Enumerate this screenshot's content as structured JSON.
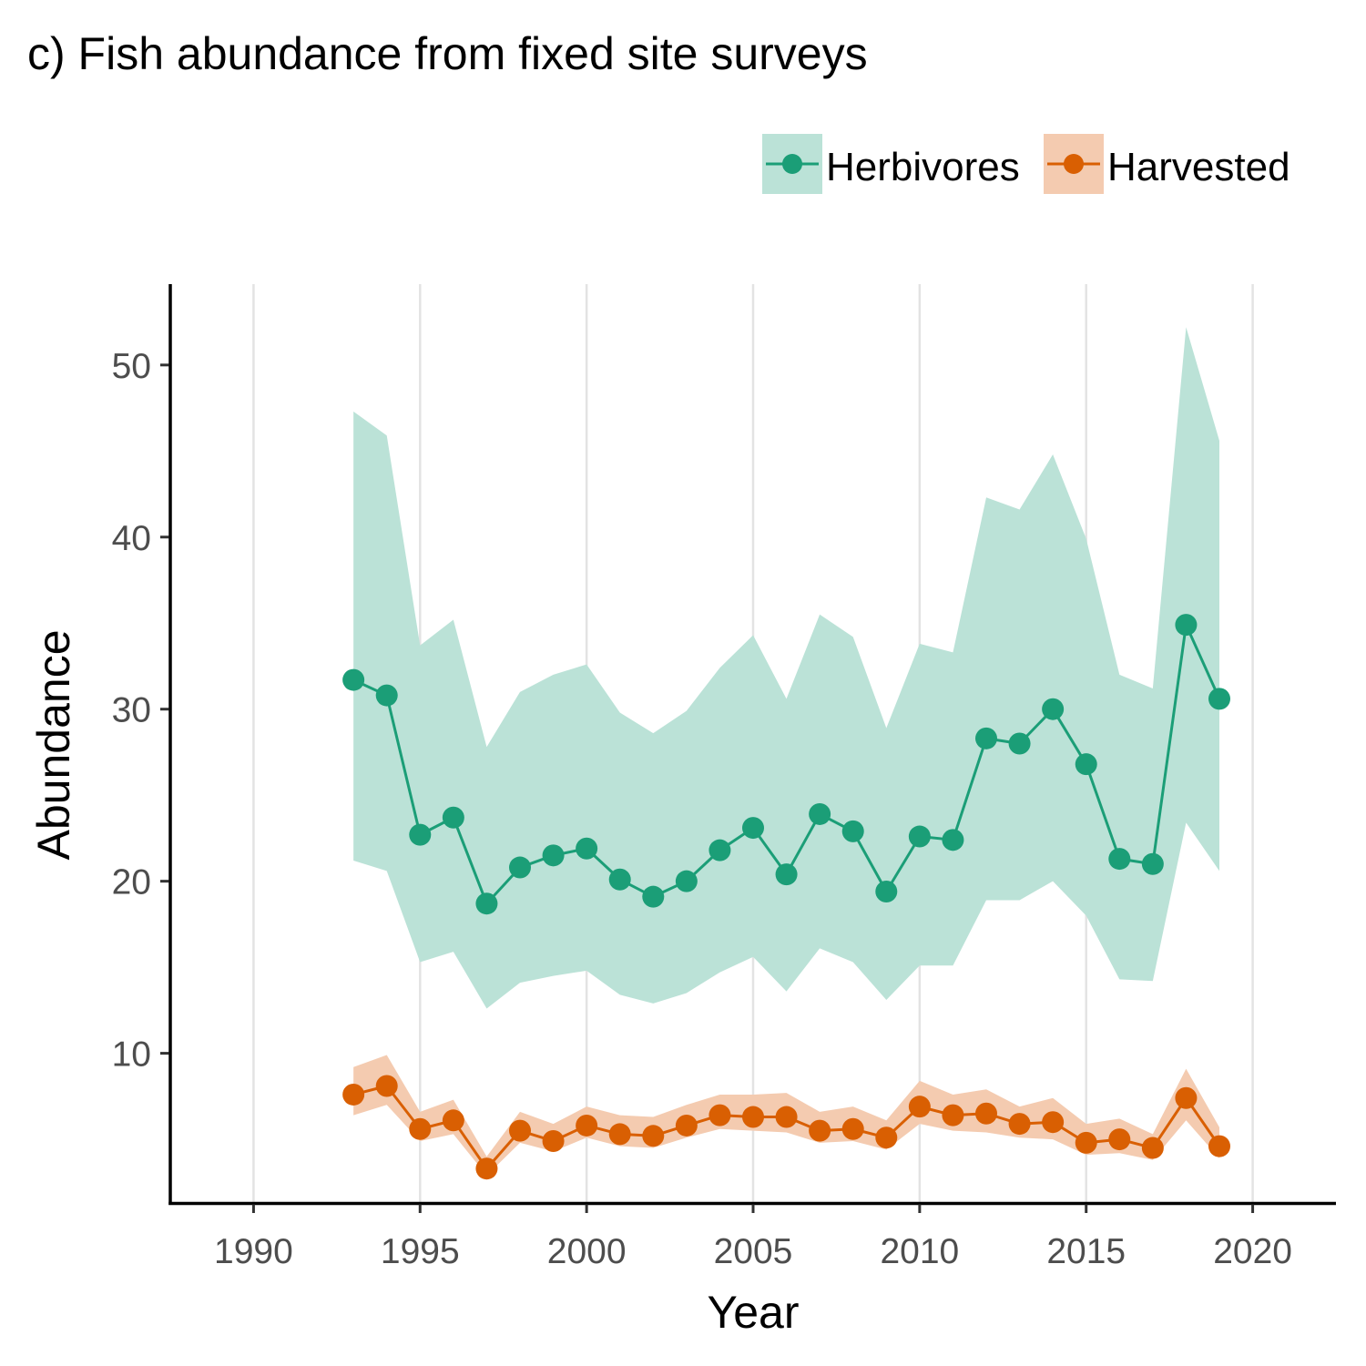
{
  "chart_data": {
    "type": "line",
    "title": "c) Fish abundance from fixed site surveys",
    "xlabel": "Year",
    "ylabel": "Abundance",
    "xlim": [
      1987.5,
      2022.5
    ],
    "ylim": [
      1.3,
      54.7
    ],
    "x_ticks": [
      1990,
      1995,
      2000,
      2005,
      2010,
      2015,
      2020
    ],
    "x_tick_labels": [
      "1990",
      "1995",
      "2000",
      "2005",
      "2010",
      "2015",
      "2020"
    ],
    "y_ticks": [
      10,
      20,
      30,
      40,
      50
    ],
    "y_tick_labels": [
      "10",
      "20",
      "30",
      "40",
      "50"
    ],
    "grid": "vertical major lines only",
    "legend_position": "top-right",
    "x": [
      1993,
      1994,
      1995,
      1996,
      1997,
      1998,
      1999,
      2000,
      2001,
      2002,
      2003,
      2004,
      2005,
      2006,
      2007,
      2008,
      2009,
      2010,
      2011,
      2012,
      2013,
      2014,
      2015,
      2016,
      2017,
      2018,
      2019
    ],
    "series": [
      {
        "name": "Herbivores",
        "color": "#1b9e77",
        "band_color": "#bbe2d7",
        "values": [
          31.7,
          30.8,
          22.7,
          23.7,
          18.7,
          20.8,
          21.5,
          21.9,
          20.1,
          19.1,
          20.0,
          21.8,
          23.1,
          20.4,
          23.9,
          22.9,
          19.4,
          22.6,
          22.4,
          28.3,
          28.0,
          30.0,
          26.8,
          21.3,
          21.0,
          34.9,
          30.6
        ],
        "lower": [
          21.2,
          20.6,
          15.3,
          15.9,
          12.6,
          14.1,
          14.5,
          14.8,
          13.4,
          12.9,
          13.5,
          14.7,
          15.6,
          13.6,
          16.1,
          15.3,
          13.1,
          15.1,
          15.1,
          18.9,
          18.9,
          20.0,
          18.0,
          14.3,
          14.2,
          23.4,
          20.6
        ],
        "upper": [
          47.3,
          45.9,
          33.7,
          35.2,
          27.8,
          31.0,
          32.0,
          32.6,
          29.8,
          28.6,
          29.9,
          32.4,
          34.3,
          30.6,
          35.5,
          34.2,
          28.9,
          33.8,
          33.3,
          42.3,
          41.6,
          44.8,
          39.9,
          32.0,
          31.2,
          52.2,
          45.6
        ]
      },
      {
        "name": "Harvested",
        "color": "#d95f02",
        "band_color": "#f4cbb0",
        "values": [
          7.6,
          8.1,
          5.6,
          6.1,
          3.3,
          5.5,
          4.9,
          5.8,
          5.3,
          5.2,
          5.8,
          6.4,
          6.3,
          6.3,
          5.5,
          5.6,
          5.1,
          6.9,
          6.4,
          6.5,
          5.9,
          6.0,
          4.8,
          5.0,
          4.5,
          7.4,
          4.6
        ],
        "lower": [
          6.4,
          7.0,
          4.9,
          5.3,
          2.9,
          4.8,
          4.3,
          5.1,
          4.6,
          4.5,
          5.1,
          5.6,
          5.5,
          5.4,
          4.8,
          4.9,
          4.4,
          5.9,
          5.5,
          5.4,
          5.1,
          5.0,
          4.1,
          4.2,
          3.8,
          6.1,
          3.9
        ],
        "upper": [
          9.2,
          9.9,
          6.6,
          7.3,
          4.0,
          6.6,
          5.9,
          6.9,
          6.4,
          6.3,
          7.0,
          7.6,
          7.6,
          7.7,
          6.6,
          6.9,
          6.1,
          8.4,
          7.6,
          7.9,
          6.9,
          7.4,
          5.9,
          6.2,
          5.3,
          9.1,
          5.7
        ]
      }
    ]
  }
}
